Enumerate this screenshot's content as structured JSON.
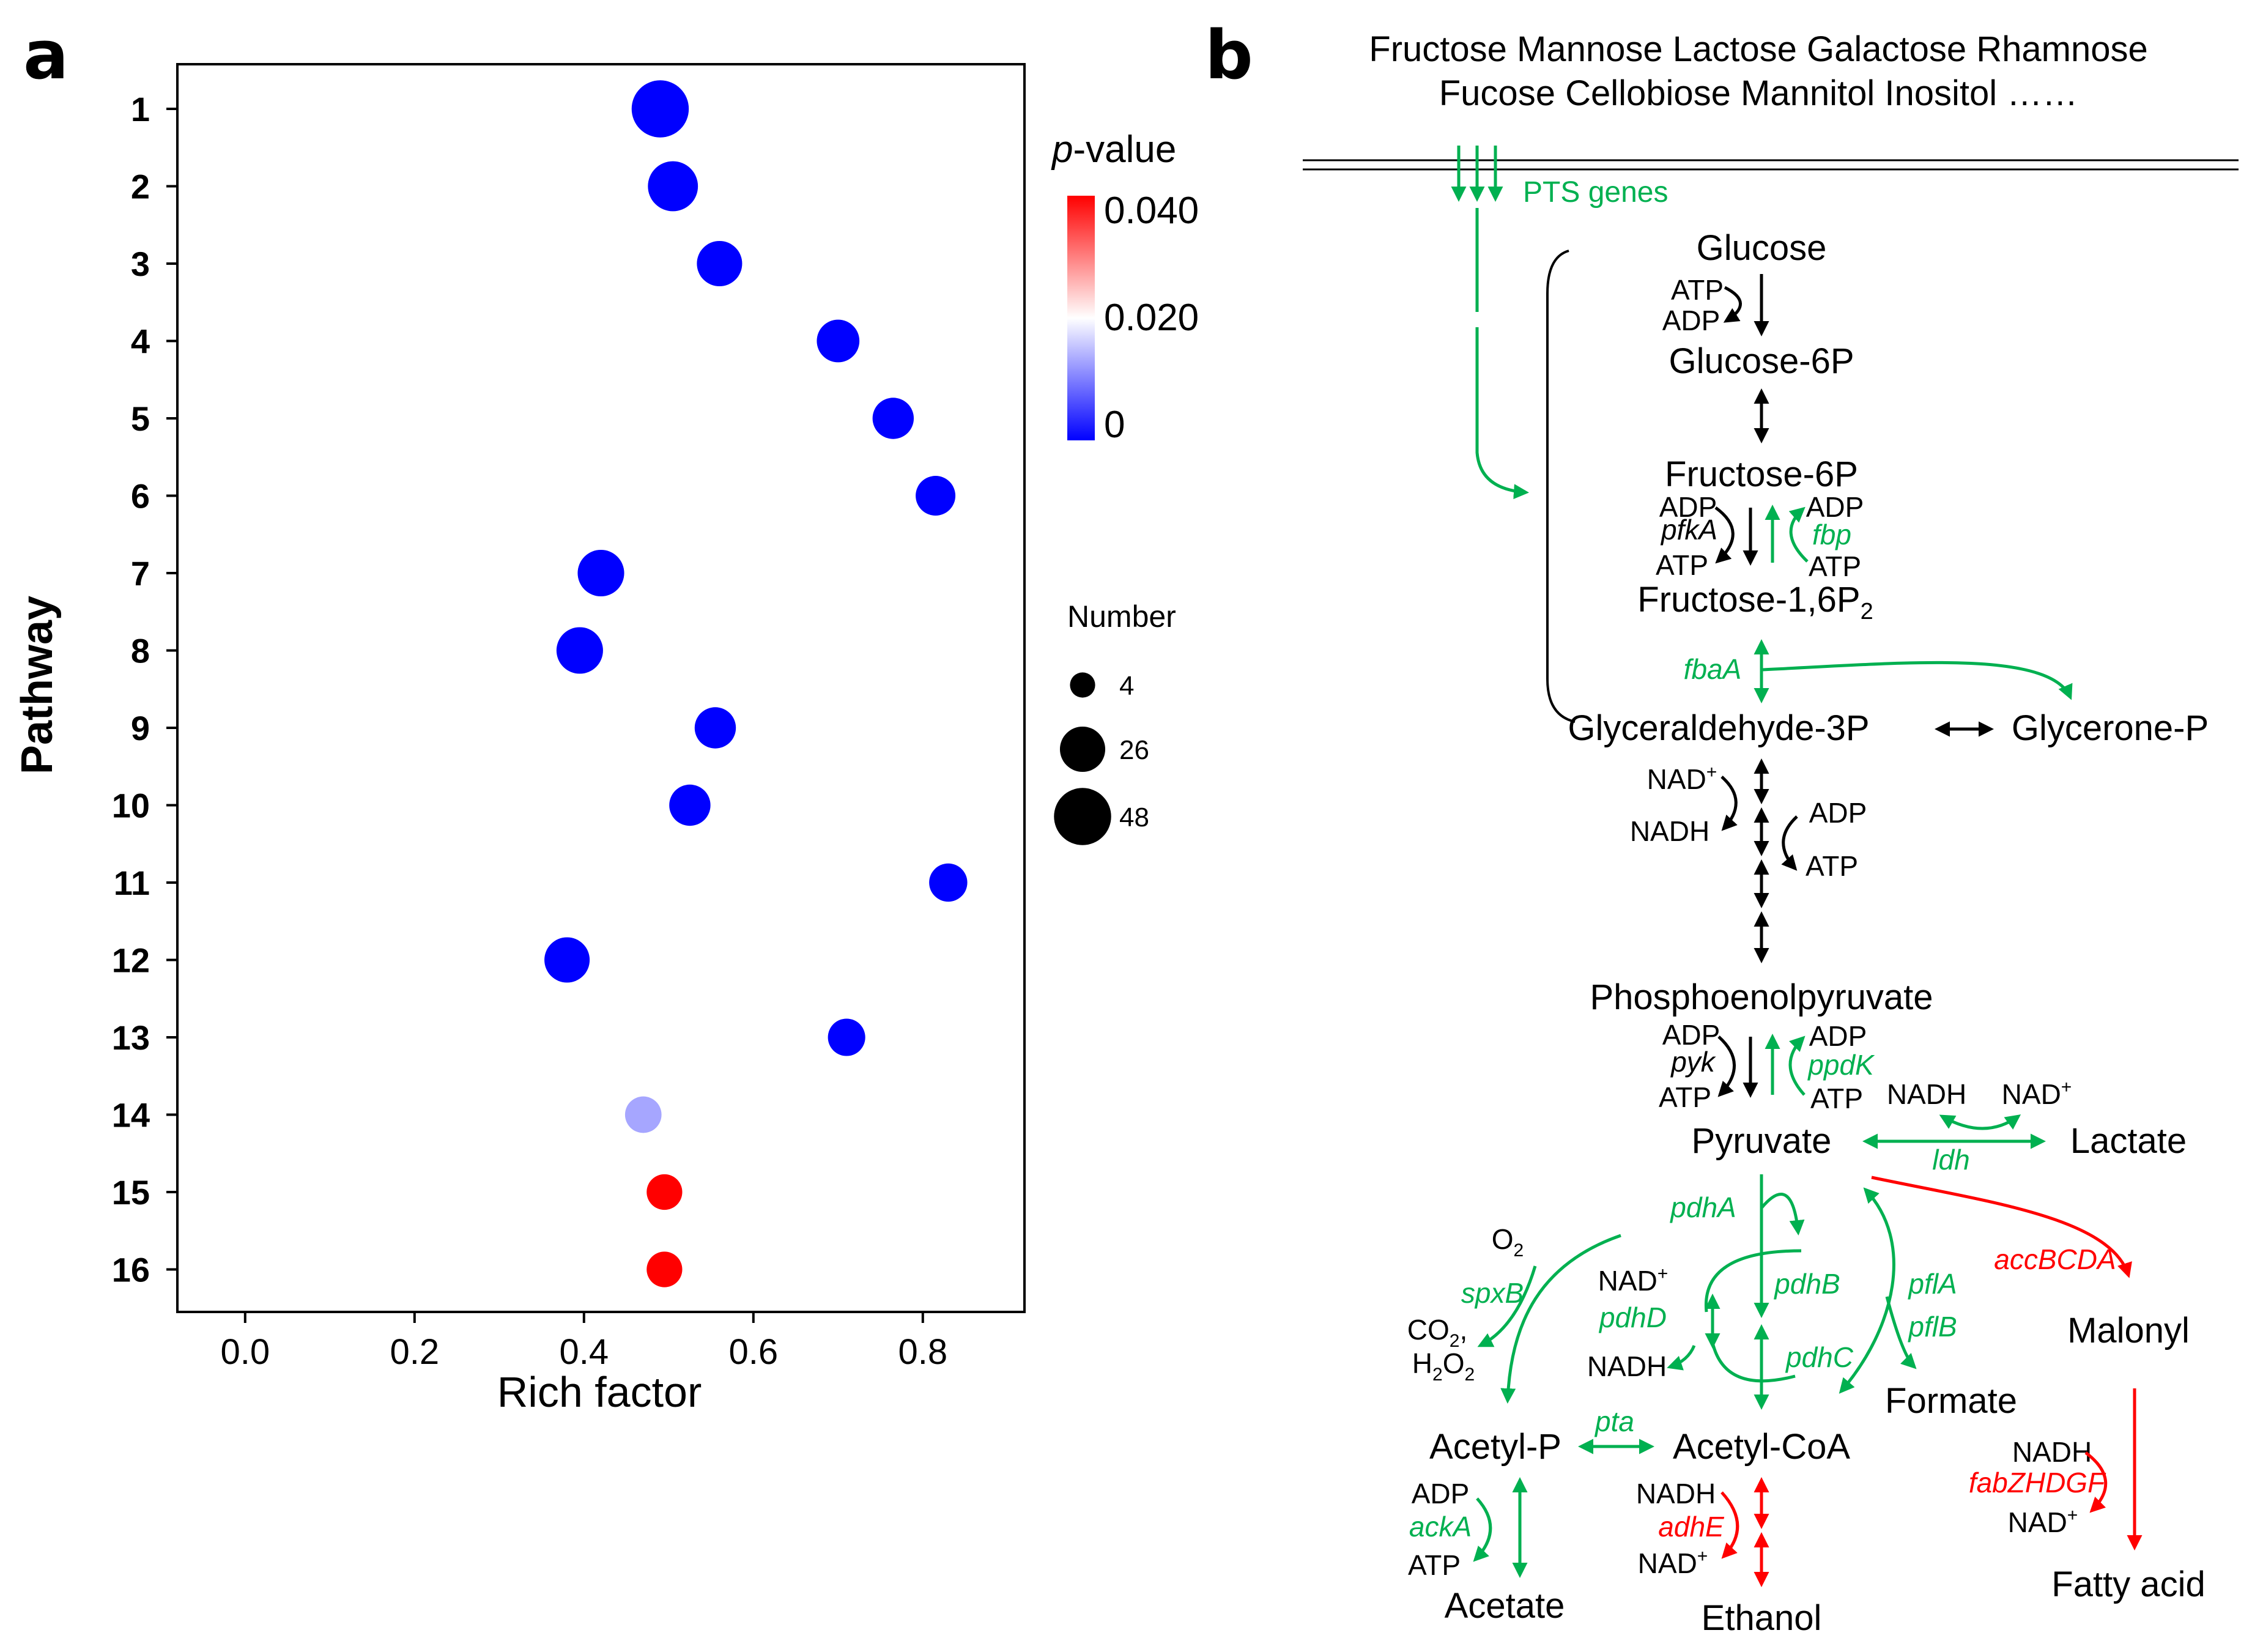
{
  "panel_a": {
    "label": "a",
    "chart_data": {
      "type": "scatter",
      "title": "",
      "xlabel": "Rich factor",
      "ylabel": "Pathway",
      "xlim": [
        -0.08,
        0.92
      ],
      "xticks": [
        "0.0",
        "0.2",
        "0.4",
        "0.6",
        "0.8"
      ],
      "categories": [
        "1",
        "2",
        "3",
        "4",
        "5",
        "6",
        "7",
        "8",
        "9",
        "10",
        "11",
        "12",
        "13",
        "14",
        "15",
        "16"
      ],
      "rich_factor": [
        0.49,
        0.505,
        0.56,
        0.7,
        0.765,
        0.815,
        0.42,
        0.395,
        0.555,
        0.525,
        0.83,
        0.38,
        0.71,
        0.47,
        0.495,
        0.495
      ],
      "number": [
        48,
        34,
        26,
        22,
        20,
        18,
        28,
        28,
        20,
        20,
        16,
        26,
        15,
        14,
        13,
        13
      ],
      "p_value": [
        0.0,
        0.0,
        0.0,
        0.0,
        0.0,
        0.0,
        0.0,
        0.0,
        0.0,
        0.0,
        0.0,
        0.0,
        0.0,
        0.013,
        0.04,
        0.04
      ],
      "colorbar": {
        "title_italic": "p",
        "title_rest": "-value",
        "ticks": [
          "0.040",
          "0.020",
          "0"
        ],
        "tick_values": [
          0.04,
          0.02,
          0.0
        ],
        "colors": [
          "#ff0000",
          "#ffffff",
          "#0000ff"
        ]
      },
      "size_legend": {
        "title": "Number",
        "values": [
          4,
          26,
          48
        ],
        "labels": [
          "4",
          "26",
          "48"
        ]
      }
    }
  },
  "panel_b": {
    "label": "b",
    "sugars_line1": "Fructose Mannose Lactose Galactose Rhamnose",
    "sugars_line2": "Fucose Cellobiose Mannitol Inositol ……",
    "pts_genes": "PTS genes",
    "metabolites": {
      "glucose": "Glucose",
      "glucose6p": "Glucose-6P",
      "fructose6p": "Fructose-6P",
      "fructose16p2": "Fructose-1,6P",
      "fructose16p2_sub": "2",
      "glyceraldehyde3p": "Glyceraldehyde-3P",
      "glyceronep": "Glycerone-P",
      "pep": "Phosphoenolpyruvate",
      "pyruvate": "Pyruvate",
      "lactate": "Lactate",
      "malonyl": "Malonyl",
      "fatty_acid": "Fatty acid",
      "formate": "Formate",
      "acetylp": "Acetyl-P",
      "acetylcoa": "Acetyl-CoA",
      "acetate": "Acetate",
      "ethanol": "Ethanol"
    },
    "cofactors": {
      "atp": "ATP",
      "adp": "ADP",
      "nad": "NAD",
      "nadh": "NADH",
      "plus": "+",
      "o2": "O",
      "co2": "CO",
      "h2o2_h": "H",
      "h2o2_o": "O",
      "sub2": "2",
      "comma": ","
    },
    "genes": {
      "pfkA": "pfkA",
      "fbp": "fbp",
      "fbaA": "fbaA",
      "pyk": "pyk",
      "ppdK": "ppdK",
      "ldh": "ldh",
      "pdhA": "pdhA",
      "pdhB": "pdhB",
      "pdhC": "pdhC",
      "pdhD": "pdhD",
      "pflA": "pflA",
      "pflB": "pflB",
      "spxB": "spxB",
      "pta": "pta",
      "ackA": "ackA",
      "adhE": "adhE",
      "accBCDA": "accBCDA",
      "fabZHDGF": "fabZHDGF"
    },
    "colors": {
      "green": "#00b050",
      "red": "#ff0000",
      "black": "#000000"
    }
  }
}
